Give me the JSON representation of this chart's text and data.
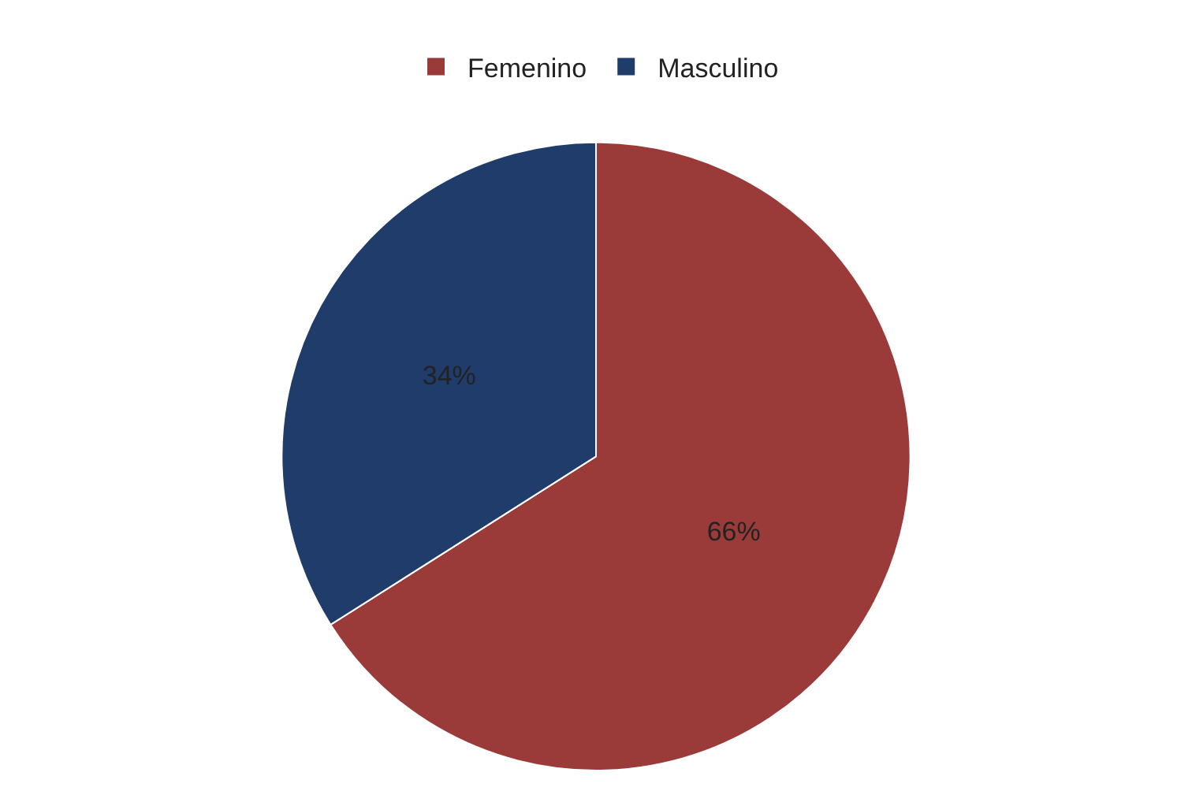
{
  "chart_data": {
    "type": "pie",
    "categories": [
      "Femenino",
      "Masculino"
    ],
    "values": [
      66,
      34
    ],
    "colors": [
      "#9b3b39",
      "#1f3c6b"
    ],
    "value_labels": [
      "66%",
      "34%"
    ],
    "legend": "top"
  }
}
